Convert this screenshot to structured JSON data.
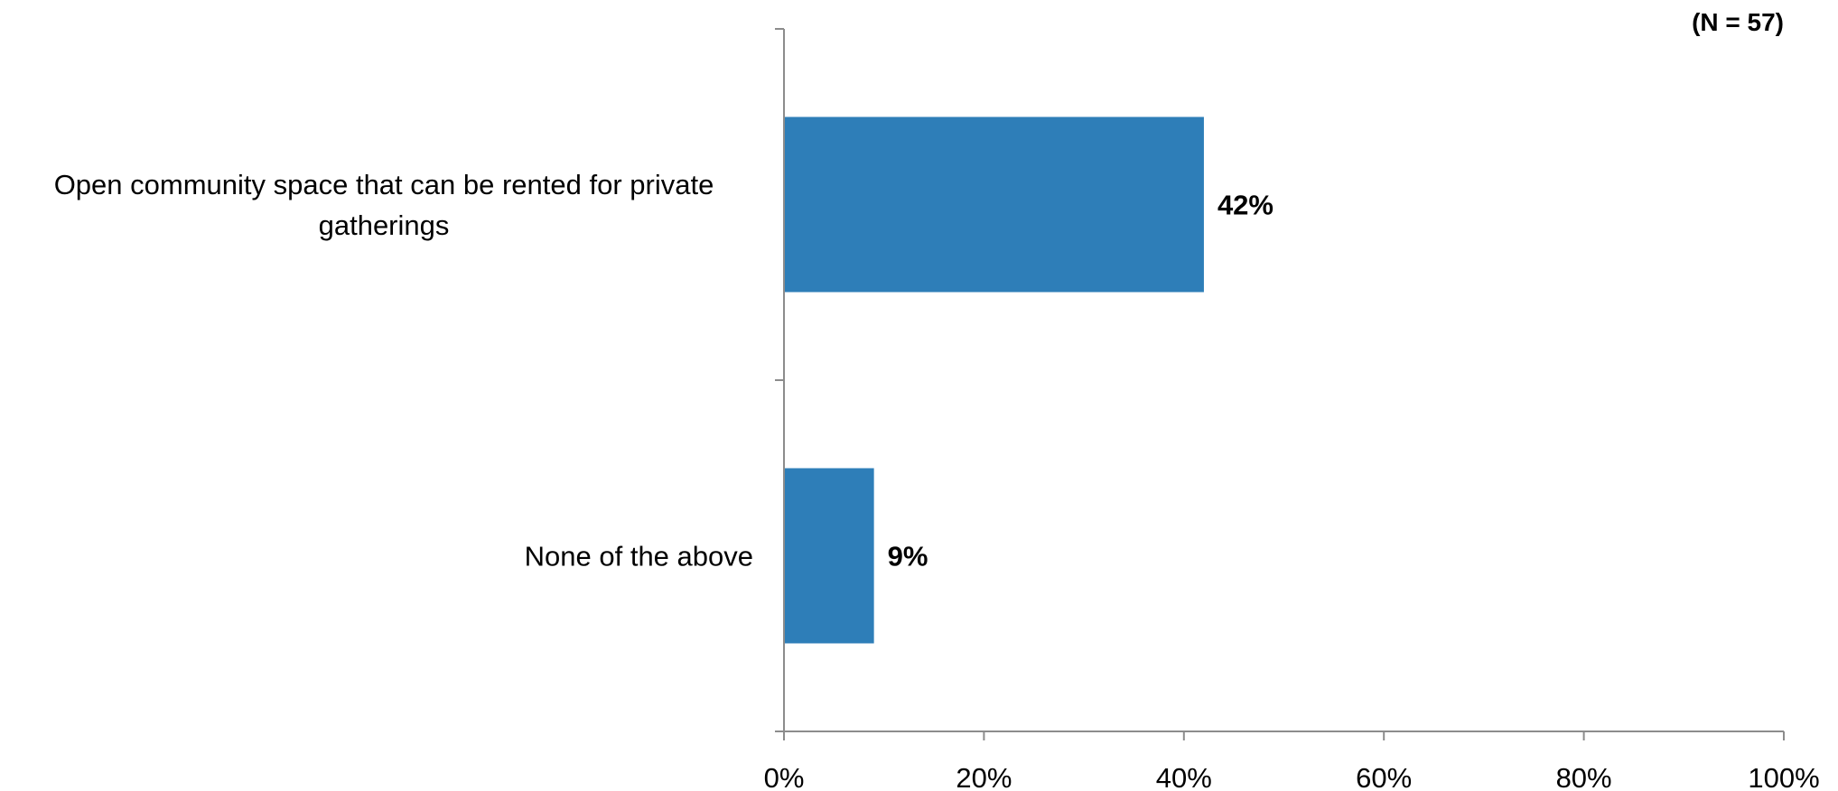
{
  "chart_data": {
    "type": "bar",
    "orientation": "horizontal",
    "note": "(N = 57)",
    "categories": [
      [
        "Open community space that can be rented for private",
        "gatherings"
      ],
      [
        "None of the above"
      ]
    ],
    "values": [
      42,
      9
    ],
    "data_labels": [
      "42%",
      "9%"
    ],
    "xlim": [
      0,
      100
    ],
    "xticks": [
      "0%",
      "20%",
      "40%",
      "60%",
      "80%",
      "100%"
    ],
    "grid": false,
    "legend": "none",
    "colors": {
      "bar": "#2e7eb8",
      "axis": "#8c8c8c"
    }
  }
}
